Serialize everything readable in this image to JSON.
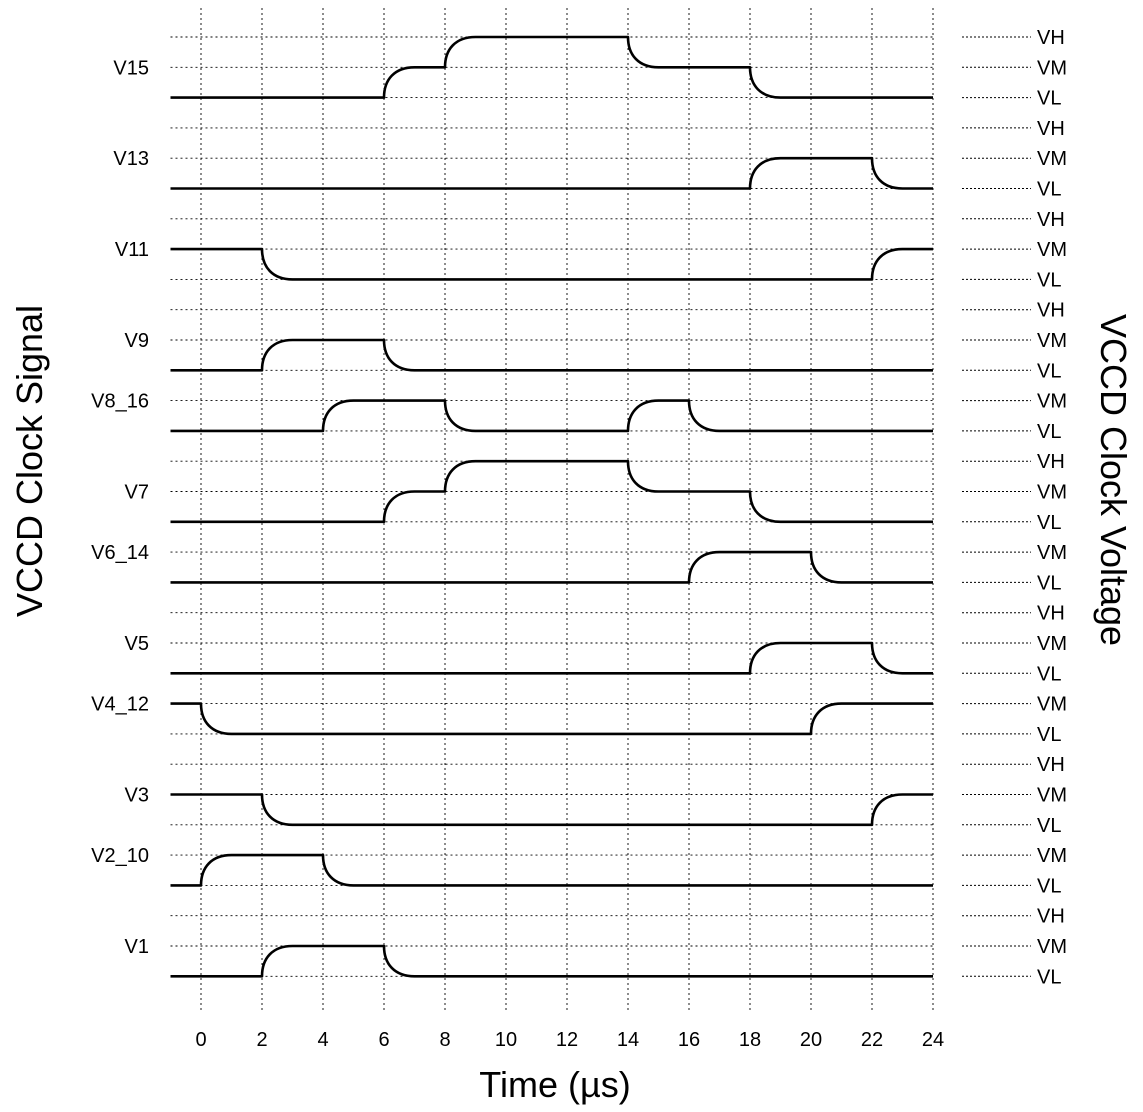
{
  "chart_data": {
    "type": "timing-diagram",
    "xlabel": "Time (µs)",
    "ylabel_left": "VCCD Clock Signal",
    "ylabel_right": "VCCD Clock Voltage",
    "x_ticks": [
      "0",
      "2",
      "4",
      "6",
      "8",
      "10",
      "12",
      "14",
      "16",
      "18",
      "20",
      "22",
      "24"
    ],
    "x_range": [
      -1,
      24
    ],
    "signals": [
      {
        "name": "V15",
        "levels": [
          "VH",
          "VM",
          "VL"
        ],
        "start": "VL",
        "transitions": [
          [
            6,
            "VM"
          ],
          [
            8,
            "VH"
          ],
          [
            14,
            "VM"
          ],
          [
            18,
            "VL"
          ]
        ]
      },
      {
        "name": "V13",
        "levels": [
          "VH",
          "VM",
          "VL"
        ],
        "start": "VL",
        "transitions": [
          [
            18,
            "VM"
          ],
          [
            22,
            "VL"
          ]
        ]
      },
      {
        "name": "V11",
        "levels": [
          "VH",
          "VM",
          "VL"
        ],
        "start": "VM",
        "transitions": [
          [
            2,
            "VL"
          ],
          [
            22,
            "VM"
          ]
        ]
      },
      {
        "name": "V9",
        "levels": [
          "VH",
          "VM",
          "VL"
        ],
        "start": "VL",
        "transitions": [
          [
            2,
            "VM"
          ],
          [
            6,
            "VL"
          ]
        ]
      },
      {
        "name": "V8_16",
        "levels": [
          "VM",
          "VL"
        ],
        "start": "VL",
        "transitions": [
          [
            4,
            "VM"
          ],
          [
            8,
            "VL"
          ],
          [
            14,
            "VM"
          ],
          [
            16,
            "VL"
          ]
        ]
      },
      {
        "name": "V7",
        "levels": [
          "VH",
          "VM",
          "VL"
        ],
        "start": "VL",
        "transitions": [
          [
            6,
            "VM"
          ],
          [
            8,
            "VH"
          ],
          [
            14,
            "VM"
          ],
          [
            18,
            "VL"
          ]
        ]
      },
      {
        "name": "V6_14",
        "levels": [
          "VM",
          "VL"
        ],
        "start": "VL",
        "transitions": [
          [
            16,
            "VM"
          ],
          [
            20,
            "VL"
          ]
        ]
      },
      {
        "name": "V5",
        "levels": [
          "VH",
          "VM",
          "VL"
        ],
        "start": "VL",
        "transitions": [
          [
            18,
            "VM"
          ],
          [
            22,
            "VL"
          ]
        ]
      },
      {
        "name": "V4_12",
        "levels": [
          "VM",
          "VL"
        ],
        "start": "VM",
        "transitions": [
          [
            0,
            "VL"
          ],
          [
            20,
            "VM"
          ]
        ]
      },
      {
        "name": "V3",
        "levels": [
          "VH",
          "VM",
          "VL"
        ],
        "start": "VM",
        "transitions": [
          [
            2,
            "VL"
          ],
          [
            22,
            "VM"
          ]
        ]
      },
      {
        "name": "V2_10",
        "levels": [
          "VM",
          "VL"
        ],
        "start": "VL",
        "transitions": [
          [
            0,
            "VM"
          ],
          [
            4,
            "VL"
          ]
        ]
      },
      {
        "name": "V1",
        "levels": [
          "VH",
          "VM",
          "VL"
        ],
        "start": "VL",
        "transitions": [
          [
            2,
            "VM"
          ],
          [
            6,
            "VL"
          ]
        ]
      }
    ]
  }
}
